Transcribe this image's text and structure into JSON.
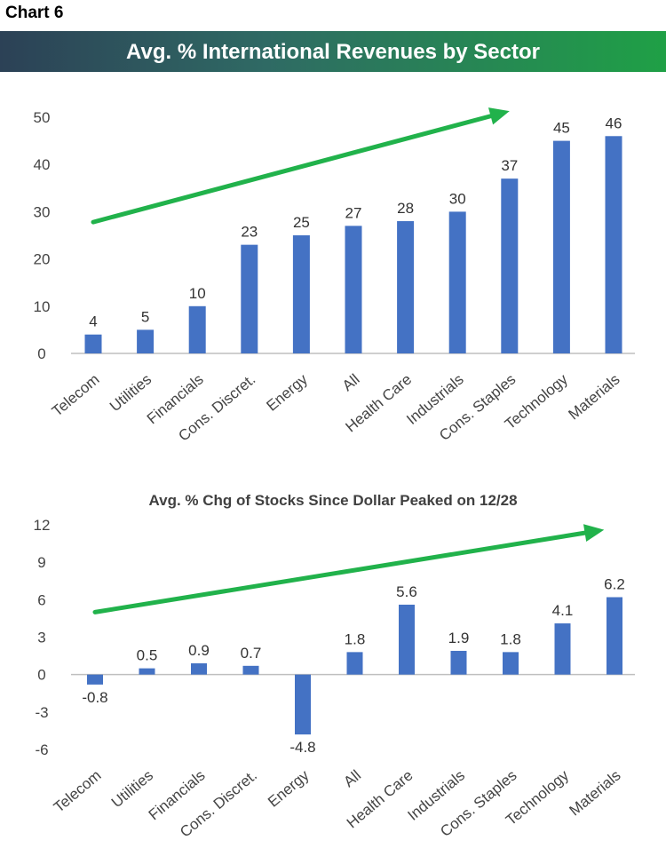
{
  "page": {
    "label": "Chart 6"
  },
  "colors": {
    "bar": "#4472c4",
    "arrow": "#21b24b",
    "axis": "#bfbfbf",
    "text": "#444444"
  },
  "chart_data": [
    {
      "type": "bar",
      "title": "Avg. % International Revenues by Sector",
      "categories": [
        "Telecom",
        "Utilities",
        "Financials",
        "Cons. Discret.",
        "Energy",
        "All",
        "Health Care",
        "Industrials",
        "Cons. Staples",
        "Technology",
        "Materials"
      ],
      "values": [
        4,
        5,
        10,
        23,
        25,
        27,
        28,
        30,
        37,
        45,
        46
      ],
      "value_labels": [
        "4",
        "5",
        "10",
        "23",
        "25",
        "27",
        "28",
        "30",
        "37",
        "45",
        "46"
      ],
      "yticks": [
        "0",
        "10",
        "20",
        "30",
        "40",
        "50"
      ],
      "ytick_values": [
        0,
        10,
        20,
        30,
        40,
        50
      ],
      "ylim": [
        0,
        50
      ],
      "grid": false,
      "trend_arrow": {
        "from": [
          0,
          27.8
        ],
        "to": [
          8,
          51.3
        ]
      }
    },
    {
      "type": "bar",
      "title": "Avg. % Chg of Stocks Since Dollar Peaked on 12/28",
      "categories": [
        "Telecom",
        "Utilities",
        "Financials",
        "Cons. Discret.",
        "Energy",
        "All",
        "Health Care",
        "Industrials",
        "Cons. Staples",
        "Technology",
        "Materials"
      ],
      "values": [
        -0.8,
        0.5,
        0.9,
        0.7,
        -4.8,
        1.8,
        5.6,
        1.9,
        1.8,
        4.1,
        6.2
      ],
      "value_labels": [
        "-0.8",
        "0.5",
        "0.9",
        "0.7",
        "-4.8",
        "1.8",
        "5.6",
        "1.9",
        "1.8",
        "4.1",
        "6.2"
      ],
      "yticks": [
        "12",
        "9",
        "6",
        "3",
        "0",
        "-3",
        "-6"
      ],
      "ytick_values": [
        12,
        9,
        6,
        3,
        0,
        -3,
        -6
      ],
      "ylim": [
        -6,
        12
      ],
      "grid": false,
      "trend_arrow": {
        "from": [
          0,
          5.0
        ],
        "to": [
          9.8,
          11.6
        ]
      }
    }
  ]
}
